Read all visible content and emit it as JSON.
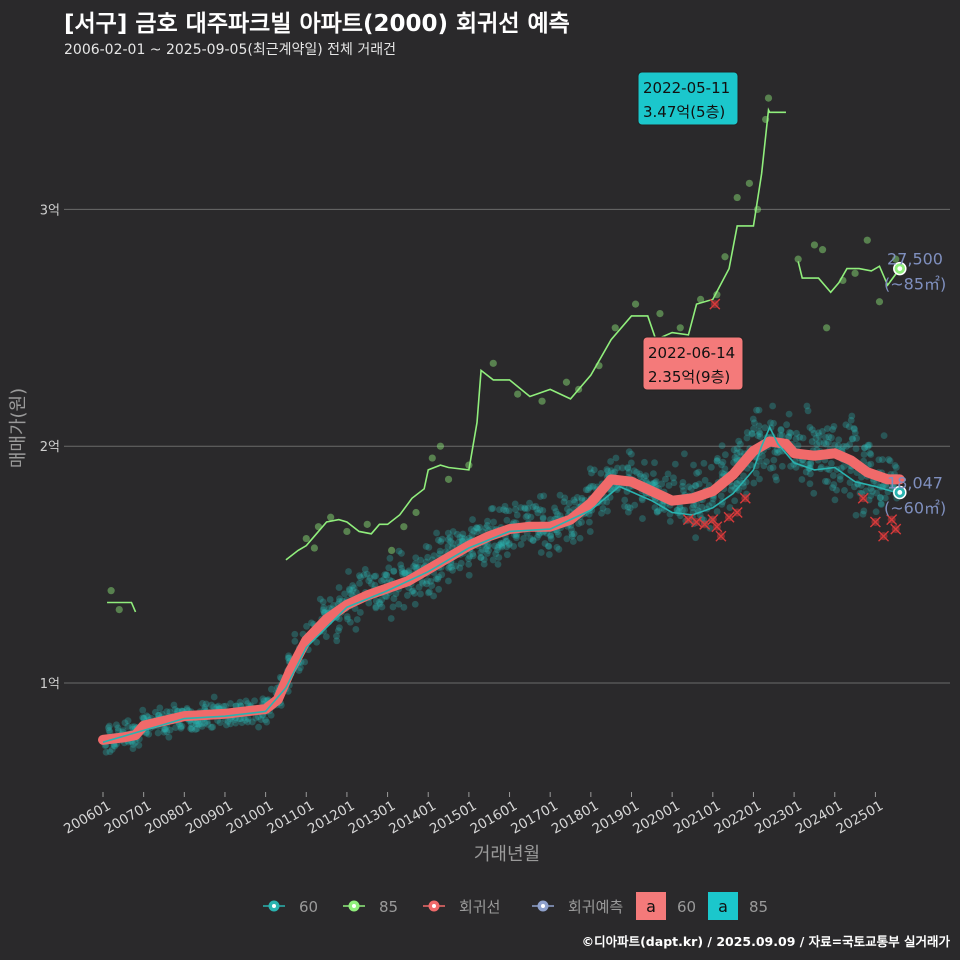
{
  "title": "[서구] 금호 대주파크빌 아파트(2000) 회귀선 예측",
  "subtitle": "2006-02-01 ~ 2025-09-05(최근계약일) 전체 거래건",
  "credit": "©디아파트(dapt.kr) / 2025.09.09 / 자료=국토교통부 실거래가",
  "colors": {
    "background": "#2a292b",
    "grid": "#6b6b6b",
    "s60": "#2ab3b0",
    "s85": "#90ee7c",
    "regression": "#f06a6a",
    "prediction": "#8fa1cc",
    "label85": "#7f8fbe"
  },
  "chart_data": {
    "type": "scatter",
    "xlabel": "거래년월",
    "ylabel": "매매가(원)",
    "x_range": [
      2006.0,
      2025.9
    ],
    "y_range": [
      5800,
      34800
    ],
    "y_ticks": [
      {
        "value": 10000,
        "label": "1억"
      },
      {
        "value": 20000,
        "label": "2억"
      },
      {
        "value": 30000,
        "label": "3억"
      }
    ],
    "x_ticks": [
      {
        "value": 2006.0,
        "label": "200601"
      },
      {
        "value": 2007.0,
        "label": "200701"
      },
      {
        "value": 2008.0,
        "label": "200801"
      },
      {
        "value": 2009.0,
        "label": "200901"
      },
      {
        "value": 2010.0,
        "label": "201001"
      },
      {
        "value": 2011.0,
        "label": "201101"
      },
      {
        "value": 2012.0,
        "label": "201201"
      },
      {
        "value": 2013.0,
        "label": "201301"
      },
      {
        "value": 2014.0,
        "label": "201401"
      },
      {
        "value": 2015.0,
        "label": "201501"
      },
      {
        "value": 2016.0,
        "label": "201601"
      },
      {
        "value": 2017.0,
        "label": "201701"
      },
      {
        "value": 2018.0,
        "label": "201801"
      },
      {
        "value": 2019.0,
        "label": "201901"
      },
      {
        "value": 2020.0,
        "label": "202001"
      },
      {
        "value": 2021.0,
        "label": "202101"
      },
      {
        "value": 2022.0,
        "label": "202201"
      },
      {
        "value": 2023.0,
        "label": "202301"
      },
      {
        "value": 2024.0,
        "label": "202401"
      },
      {
        "value": 2025.0,
        "label": "202501"
      }
    ],
    "regression": {
      "name": "회귀선",
      "points": [
        [
          2006.0,
          7600
        ],
        [
          2006.5,
          7700
        ],
        [
          2006.8,
          7800
        ],
        [
          2007.0,
          8200
        ],
        [
          2007.5,
          8400
        ],
        [
          2008.0,
          8600
        ],
        [
          2008.5,
          8650
        ],
        [
          2009.0,
          8700
        ],
        [
          2009.5,
          8800
        ],
        [
          2010.0,
          8900
        ],
        [
          2010.3,
          9300
        ],
        [
          2010.6,
          10500
        ],
        [
          2011.0,
          11800
        ],
        [
          2011.5,
          12700
        ],
        [
          2012.0,
          13300
        ],
        [
          2012.5,
          13700
        ],
        [
          2013.0,
          14000
        ],
        [
          2013.5,
          14300
        ],
        [
          2014.0,
          14800
        ],
        [
          2014.5,
          15300
        ],
        [
          2015.0,
          15800
        ],
        [
          2015.5,
          16200
        ],
        [
          2016.0,
          16500
        ],
        [
          2016.5,
          16600
        ],
        [
          2017.0,
          16600
        ],
        [
          2017.5,
          16900
        ],
        [
          2018.0,
          17600
        ],
        [
          2018.5,
          18600
        ],
        [
          2019.0,
          18500
        ],
        [
          2019.5,
          18100
        ],
        [
          2020.0,
          17700
        ],
        [
          2020.5,
          17800
        ],
        [
          2021.0,
          18100
        ],
        [
          2021.5,
          18800
        ],
        [
          2022.0,
          19800
        ],
        [
          2022.4,
          20200
        ],
        [
          2022.8,
          20100
        ],
        [
          2023.0,
          19700
        ],
        [
          2023.5,
          19600
        ],
        [
          2024.0,
          19700
        ],
        [
          2024.4,
          19400
        ],
        [
          2024.8,
          18900
        ],
        [
          2025.3,
          18600
        ],
        [
          2025.6,
          18600
        ]
      ]
    },
    "prediction": {
      "name": "회귀예측",
      "points": [
        [
          2006.0,
          7500
        ],
        [
          2007.0,
          8000
        ],
        [
          2008.0,
          8500
        ],
        [
          2009.0,
          8600
        ],
        [
          2010.0,
          8800
        ],
        [
          2010.5,
          9800
        ],
        [
          2011.0,
          11500
        ],
        [
          2012.0,
          13200
        ],
        [
          2013.0,
          13900
        ],
        [
          2014.0,
          14700
        ],
        [
          2015.0,
          15700
        ],
        [
          2016.0,
          16400
        ],
        [
          2017.0,
          16500
        ],
        [
          2018.0,
          17300
        ],
        [
          2018.7,
          18300
        ],
        [
          2019.5,
          17700
        ],
        [
          2020.0,
          17200
        ],
        [
          2020.5,
          17100
        ],
        [
          2021.0,
          17400
        ],
        [
          2021.5,
          18000
        ],
        [
          2022.0,
          19000
        ],
        [
          2022.2,
          20000
        ],
        [
          2022.4,
          20800
        ],
        [
          2022.6,
          20100
        ],
        [
          2023.0,
          19300
        ],
        [
          2023.5,
          19000
        ],
        [
          2024.0,
          19100
        ],
        [
          2024.5,
          18500
        ],
        [
          2025.0,
          18300
        ],
        [
          2025.6,
          18000
        ]
      ]
    },
    "series": [
      {
        "name": "85",
        "color": "#90ee7c",
        "line_segments": [
          [
            [
              2006.1,
              13400
            ],
            [
              2006.7,
              13400
            ],
            [
              2006.8,
              13000
            ]
          ],
          [
            [
              2010.5,
              15200
            ],
            [
              2010.8,
              15600
            ],
            [
              2011.0,
              15800
            ],
            [
              2011.2,
              16200
            ],
            [
              2011.5,
              16800
            ],
            [
              2011.8,
              16900
            ],
            [
              2012.0,
              16800
            ],
            [
              2012.3,
              16400
            ],
            [
              2012.6,
              16300
            ],
            [
              2012.8,
              16700
            ],
            [
              2013.0,
              16700
            ],
            [
              2013.3,
              17100
            ],
            [
              2013.6,
              17800
            ],
            [
              2013.9,
              18200
            ],
            [
              2014.0,
              19000
            ],
            [
              2014.3,
              19200
            ],
            [
              2014.5,
              19100
            ],
            [
              2015.0,
              19000
            ],
            [
              2015.2,
              21000
            ],
            [
              2015.3,
              23200
            ],
            [
              2015.6,
              22800
            ],
            [
              2016.0,
              22800
            ],
            [
              2016.5,
              22100
            ],
            [
              2017.0,
              22400
            ],
            [
              2017.5,
              22000
            ],
            [
              2018.0,
              23000
            ],
            [
              2018.5,
              24500
            ],
            [
              2019.0,
              25500
            ],
            [
              2019.4,
              25500
            ],
            [
              2019.6,
              24500
            ],
            [
              2020.0,
              24800
            ],
            [
              2020.4,
              24700
            ],
            [
              2020.6,
              26000
            ],
            [
              2021.0,
              26200
            ],
            [
              2021.4,
              27500
            ],
            [
              2021.6,
              29300
            ],
            [
              2022.0,
              29300
            ],
            [
              2022.2,
              31500
            ],
            [
              2022.37,
              34200
            ],
            [
              2022.4,
              34100
            ],
            [
              2022.8,
              34100
            ]
          ],
          [
            [
              2023.1,
              27800
            ],
            [
              2023.2,
              27100
            ],
            [
              2023.6,
              27100
            ],
            [
              2023.9,
              26500
            ],
            [
              2024.1,
              26900
            ],
            [
              2024.3,
              27500
            ],
            [
              2024.6,
              27500
            ],
            [
              2024.9,
              27400
            ],
            [
              2025.1,
              27600
            ],
            [
              2025.3,
              26800
            ],
            [
              2025.6,
              27500
            ]
          ]
        ],
        "points": [
          [
            2006.2,
            13900
          ],
          [
            2006.4,
            13100
          ],
          [
            2011.0,
            16100
          ],
          [
            2011.2,
            15700
          ],
          [
            2011.3,
            16600
          ],
          [
            2011.6,
            17000
          ],
          [
            2012.0,
            16400
          ],
          [
            2012.5,
            16700
          ],
          [
            2013.1,
            15600
          ],
          [
            2013.4,
            16600
          ],
          [
            2013.7,
            17200
          ],
          [
            2014.1,
            19500
          ],
          [
            2014.3,
            20000
          ],
          [
            2014.5,
            18600
          ],
          [
            2015.0,
            19200
          ],
          [
            2015.6,
            23500
          ],
          [
            2016.2,
            22200
          ],
          [
            2016.8,
            21900
          ],
          [
            2017.4,
            22700
          ],
          [
            2017.7,
            22400
          ],
          [
            2018.2,
            23400
          ],
          [
            2018.6,
            25000
          ],
          [
            2019.1,
            26000
          ],
          [
            2019.7,
            25600
          ],
          [
            2020.2,
            25000
          ],
          [
            2020.7,
            26200
          ],
          [
            2021.1,
            26400
          ],
          [
            2021.3,
            28000
          ],
          [
            2021.6,
            30500
          ],
          [
            2021.9,
            31100
          ],
          [
            2022.1,
            30000
          ],
          [
            2022.3,
            33800
          ],
          [
            2022.37,
            34700
          ],
          [
            2023.1,
            27900
          ],
          [
            2023.5,
            28500
          ],
          [
            2023.7,
            28300
          ],
          [
            2023.8,
            25000
          ],
          [
            2024.2,
            27000
          ],
          [
            2024.5,
            27300
          ],
          [
            2024.8,
            28700
          ],
          [
            2025.1,
            26100
          ],
          [
            2025.5,
            27900
          ]
        ],
        "last": {
          "x": 2025.6,
          "y": 27500,
          "value": "27,500",
          "area": "(~85㎡)"
        }
      },
      {
        "name": "60",
        "color": "#2ab3b0",
        "last": {
          "x": 2025.6,
          "y": 18047,
          "value": "18,047",
          "area": "(~60㎡)"
        }
      }
    ],
    "highlights": [
      {
        "series": "85",
        "x": 2022.37,
        "y": 34700,
        "date": "2022-05-11",
        "price": "3.47억(5층)",
        "color": "#1bc7cc"
      },
      {
        "series": "60",
        "x": 2022.45,
        "y": 23500,
        "date": "2022-06-14",
        "price": "2.35억(9층)",
        "color": "#f47a7a"
      }
    ],
    "cancelled_points": [
      [
        2021.05,
        26000
      ],
      [
        2020.4,
        16900
      ],
      [
        2020.6,
        16800
      ],
      [
        2020.8,
        16700
      ],
      [
        2021.0,
        16900
      ],
      [
        2021.1,
        16600
      ],
      [
        2021.2,
        16200
      ],
      [
        2021.4,
        17000
      ],
      [
        2021.6,
        17200
      ],
      [
        2021.8,
        17800
      ],
      [
        2024.7,
        17800
      ],
      [
        2025.0,
        16800
      ],
      [
        2025.2,
        16200
      ],
      [
        2025.4,
        16900
      ],
      [
        2025.5,
        16500
      ]
    ],
    "legend": [
      {
        "label": "60",
        "kind": "point",
        "color": "#2ab3b0"
      },
      {
        "label": "85",
        "kind": "point",
        "color": "#90ee7c"
      },
      {
        "label": "회귀선",
        "kind": "point",
        "color": "#f06a6a"
      },
      {
        "label": "회귀예측",
        "kind": "point",
        "color": "#8fa1cc"
      },
      {
        "label": "60",
        "kind": "box",
        "color": "#f47a7a",
        "glyph": "a"
      },
      {
        "label": "85",
        "kind": "box",
        "color": "#1bc7cc",
        "glyph": "a"
      }
    ],
    "legend_position": "bottom"
  }
}
